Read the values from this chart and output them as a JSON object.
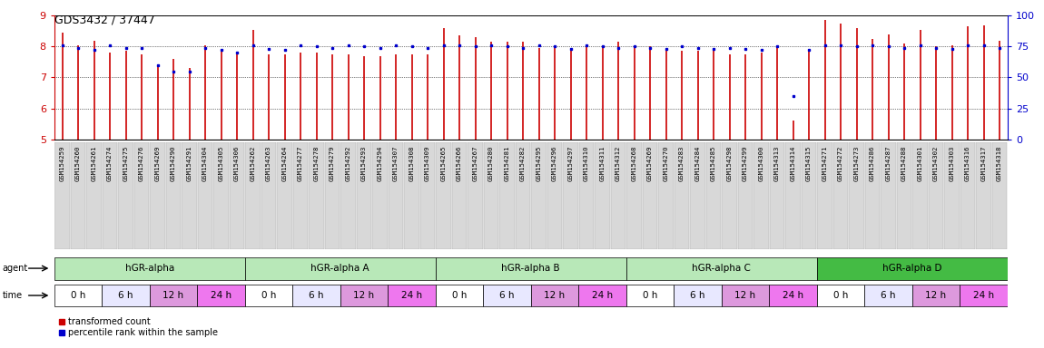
{
  "title": "GDS3432 / 37447",
  "sample_labels": [
    "GSM154259",
    "GSM154260",
    "GSM154261",
    "GSM154274",
    "GSM154275",
    "GSM154276",
    "GSM154269",
    "GSM154290",
    "GSM154291",
    "GSM154304",
    "GSM154305",
    "GSM154306",
    "GSM154262",
    "GSM154263",
    "GSM154264",
    "GSM154277",
    "GSM154278",
    "GSM154279",
    "GSM154292",
    "GSM154293",
    "GSM154294",
    "GSM154307",
    "GSM154308",
    "GSM154309",
    "GSM154265",
    "GSM154266",
    "GSM154267",
    "GSM154280",
    "GSM154281",
    "GSM154282",
    "GSM154295",
    "GSM154296",
    "GSM154297",
    "GSM154310",
    "GSM154311",
    "GSM154312",
    "GSM154268",
    "GSM154269",
    "GSM154270",
    "GSM154283",
    "GSM154284",
    "GSM154285",
    "GSM154298",
    "GSM154299",
    "GSM154300",
    "GSM154313",
    "GSM154314",
    "GSM154315",
    "GSM154271",
    "GSM154272",
    "GSM154273",
    "GSM154286",
    "GSM154287",
    "GSM154288",
    "GSM154301",
    "GSM154302",
    "GSM154303",
    "GSM154316",
    "GSM154317",
    "GSM154318"
  ],
  "red_values": [
    8.45,
    8.05,
    8.2,
    7.8,
    7.85,
    7.75,
    7.4,
    7.6,
    7.3,
    8.05,
    7.85,
    7.75,
    8.55,
    7.75,
    7.75,
    7.8,
    7.8,
    7.75,
    7.75,
    7.7,
    7.7,
    7.75,
    7.75,
    7.75,
    8.6,
    8.35,
    8.3,
    8.15,
    8.15,
    8.15,
    7.95,
    7.95,
    7.95,
    8.05,
    8.05,
    8.15,
    8.0,
    8.0,
    7.9,
    7.85,
    7.85,
    7.85,
    7.75,
    7.75,
    7.8,
    8.05,
    5.6,
    7.85,
    8.85,
    8.75,
    8.6,
    8.25,
    8.4,
    8.1,
    8.55,
    8.0,
    8.05,
    8.65,
    8.7,
    8.2
  ],
  "blue_values": [
    76,
    74,
    72,
    76,
    74,
    74,
    60,
    55,
    55,
    74,
    72,
    70,
    76,
    73,
    72,
    76,
    75,
    74,
    76,
    75,
    74,
    76,
    75,
    74,
    76,
    76,
    75,
    76,
    75,
    74,
    76,
    75,
    73,
    76,
    75,
    74,
    75,
    74,
    73,
    75,
    74,
    73,
    74,
    73,
    72,
    75,
    35,
    72,
    76,
    76,
    75,
    76,
    75,
    74,
    76,
    74,
    73,
    76,
    76,
    74
  ],
  "groups": [
    {
      "label": "hGR-alpha",
      "start": 0,
      "end": 12
    },
    {
      "label": "hGR-alpha A",
      "start": 12,
      "end": 24
    },
    {
      "label": "hGR-alpha B",
      "start": 24,
      "end": 36
    },
    {
      "label": "hGR-alpha C",
      "start": 36,
      "end": 48
    },
    {
      "label": "hGR-alpha D",
      "start": 48,
      "end": 60
    }
  ],
  "agent_colors": [
    "#b8e8b8",
    "#b8e8b8",
    "#b8e8b8",
    "#b8e8b8",
    "#44bb44"
  ],
  "time_labels": [
    "0 h",
    "6 h",
    "12 h",
    "24 h"
  ],
  "time_colors": [
    "#ffffff",
    "#e8e8ff",
    "#dd99dd",
    "#ee77ee"
  ],
  "ylim_left": [
    5,
    9
  ],
  "ylim_right": [
    0,
    100
  ],
  "yticks_left": [
    5,
    6,
    7,
    8,
    9
  ],
  "yticks_right": [
    0,
    25,
    50,
    75,
    100
  ],
  "bar_color": "#CC0000",
  "dot_color": "#0000CC",
  "background_color": "#ffffff",
  "tick_label_fontsize": 5.2,
  "group_label_fontsize": 7.5,
  "time_label_fontsize": 7.5,
  "legend_fontsize": 7,
  "title_fontsize": 9
}
